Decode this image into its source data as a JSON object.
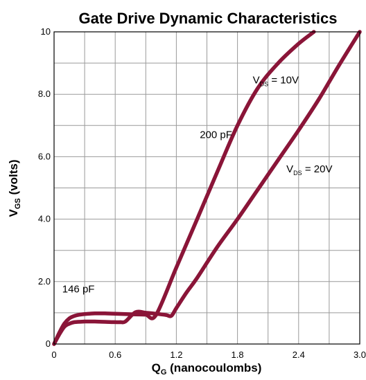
{
  "chart_data": {
    "type": "line",
    "title": "Gate Drive Dynamic Characteristics",
    "xlabel": {
      "main": "Q",
      "sub": "G",
      "rest": " (nanocoulombs)"
    },
    "ylabel": {
      "main": "V",
      "sub": "GS",
      "rest": " (volts)"
    },
    "xlim": [
      0,
      3.0
    ],
    "ylim": [
      0,
      10
    ],
    "grid": true,
    "xticks": [
      0,
      0.3,
      0.6,
      0.9,
      1.2,
      1.5,
      1.8,
      2.1,
      2.4,
      2.7,
      3.0
    ],
    "yticks": [
      0,
      1,
      2,
      3,
      4,
      5,
      6,
      7,
      8,
      9,
      10
    ],
    "xtick_labels": [
      {
        "value": 0,
        "label": "0"
      },
      {
        "value": 0.6,
        "label": "0.6"
      },
      {
        "value": 1.2,
        "label": "1.2"
      },
      {
        "value": 1.8,
        "label": "1.8"
      },
      {
        "value": 2.4,
        "label": "2.4"
      },
      {
        "value": 3.0,
        "label": "3.0"
      }
    ],
    "ytick_labels": [
      {
        "value": 0,
        "label": "0"
      },
      {
        "value": 2,
        "label": "2.0"
      },
      {
        "value": 4,
        "label": "4.0"
      },
      {
        "value": 6,
        "label": "6.0"
      },
      {
        "value": 8,
        "label": "8.0"
      },
      {
        "value": 10,
        "label": "10"
      }
    ],
    "series": [
      {
        "id": "vds-10v",
        "color": "#8a1538",
        "x": [
          0,
          0.05,
          0.1,
          0.15,
          0.2,
          0.25,
          0.3,
          0.4,
          0.5,
          0.6,
          0.7,
          0.8,
          0.9,
          1.0,
          1.2,
          1.4,
          1.6,
          1.8,
          2.0,
          2.2,
          2.4,
          2.55
        ],
        "y": [
          0,
          0.35,
          0.65,
          0.82,
          0.9,
          0.94,
          0.96,
          0.98,
          0.98,
          0.97,
          0.96,
          0.95,
          0.94,
          0.93,
          2.45,
          3.97,
          5.5,
          7.0,
          8.2,
          9.0,
          9.62,
          10.0
        ]
      },
      {
        "id": "vds-20v",
        "color": "#8a1538",
        "x": [
          0,
          0.05,
          0.1,
          0.15,
          0.2,
          0.3,
          0.4,
          0.5,
          0.6,
          0.65,
          0.7,
          0.8,
          0.9,
          1.0,
          1.1,
          1.15,
          1.2,
          1.3,
          1.4,
          1.6,
          1.8,
          2.0,
          2.2,
          2.4,
          2.6,
          2.8,
          3.0
        ],
        "y": [
          0,
          0.3,
          0.55,
          0.65,
          0.7,
          0.72,
          0.72,
          0.71,
          0.7,
          0.7,
          0.72,
          1.02,
          1.0,
          0.97,
          0.93,
          0.9,
          1.15,
          1.65,
          2.1,
          3.1,
          4.0,
          4.95,
          5.9,
          6.85,
          7.85,
          8.95,
          10.0
        ]
      }
    ],
    "annotations": [
      {
        "id": "vds-10v-label",
        "main": "V",
        "sub": "DS",
        "rest": " = 10V",
        "x": 1.95,
        "y": 8.35
      },
      {
        "id": "vds-20v-label",
        "main": "V",
        "sub": "DS",
        "rest": " = 20V",
        "x": 2.28,
        "y": 5.5
      },
      {
        "id": "cap-200pf-label",
        "text": "200 pF",
        "x": 1.43,
        "y": 6.6
      },
      {
        "id": "cap-146pf-label",
        "text": "146 pF",
        "x": 0.08,
        "y": 1.65
      }
    ]
  }
}
